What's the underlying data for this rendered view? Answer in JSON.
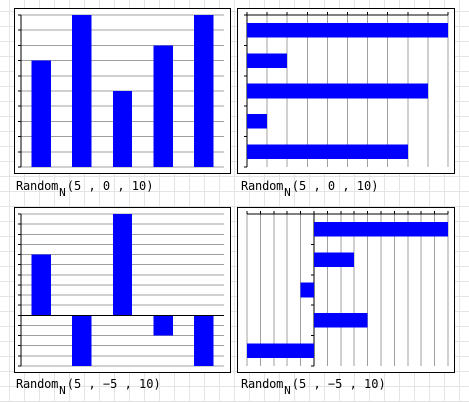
{
  "chart_data": [
    {
      "type": "bar",
      "orientation": "vertical",
      "values": [
        7,
        10,
        5,
        8,
        10
      ],
      "ylim": [
        0,
        10
      ],
      "caption": {
        "fn": "Random",
        "sub": "N",
        "args": "(5 , 0 , 10)"
      },
      "bar_color": "#0000ff"
    },
    {
      "type": "bar",
      "orientation": "horizontal",
      "values": [
        10,
        2,
        9,
        1,
        8
      ],
      "xlim": [
        0,
        10
      ],
      "caption": {
        "fn": "Random",
        "sub": "N",
        "args": "(5 , 0 , 10)"
      },
      "bar_color": "#0000ff"
    },
    {
      "type": "bar",
      "orientation": "vertical",
      "values": [
        6,
        -5,
        10,
        -2,
        -5
      ],
      "ylim": [
        -5,
        10
      ],
      "caption": {
        "fn": "Random",
        "sub": "N",
        "args": "(5 , −5 , 10)"
      },
      "bar_color": "#0000ff"
    },
    {
      "type": "bar",
      "orientation": "horizontal",
      "values": [
        10,
        3,
        -1,
        4,
        -5
      ],
      "xlim": [
        -5,
        10
      ],
      "caption": {
        "fn": "Random",
        "sub": "N",
        "args": "(5 , −5 , 10)"
      },
      "bar_color": "#0000ff"
    }
  ]
}
